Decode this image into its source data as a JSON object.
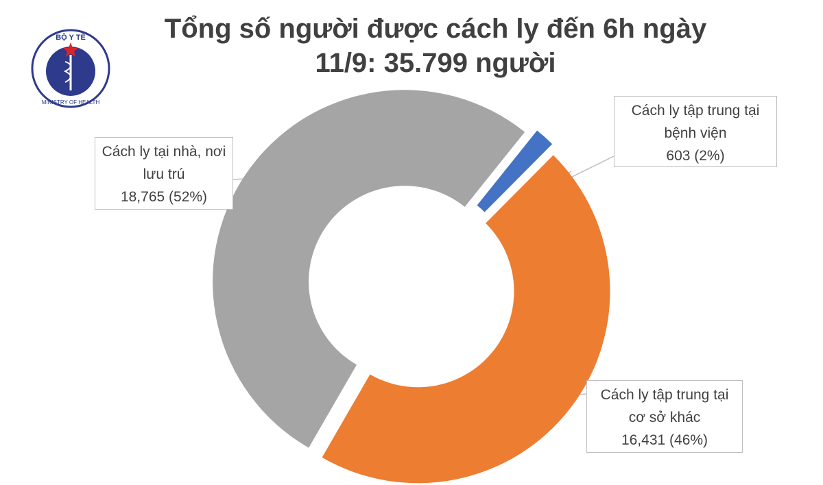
{
  "logo": {
    "top": "BỘ Y TẾ",
    "bottom": "MINISTRY OF HEALTH"
  },
  "chart_data": {
    "type": "donut",
    "title": [
      "Tổng số người được cách ly đến 6h ngày",
      "11/9: 35.799 người"
    ],
    "categories": [
      "Cách ly tại nhà, nơi lưu trú",
      "Cách ly tập trung tại bệnh viện",
      "Cách ly tập trung tại cơ sở khác"
    ],
    "values": [
      18765,
      603,
      16431
    ],
    "value_labels": [
      "18,765 (52%)",
      "603 (2%)",
      "16,431 (46%)"
    ],
    "colors": [
      "#a5a5a5",
      "#4472c4",
      "#ed7d31"
    ]
  }
}
